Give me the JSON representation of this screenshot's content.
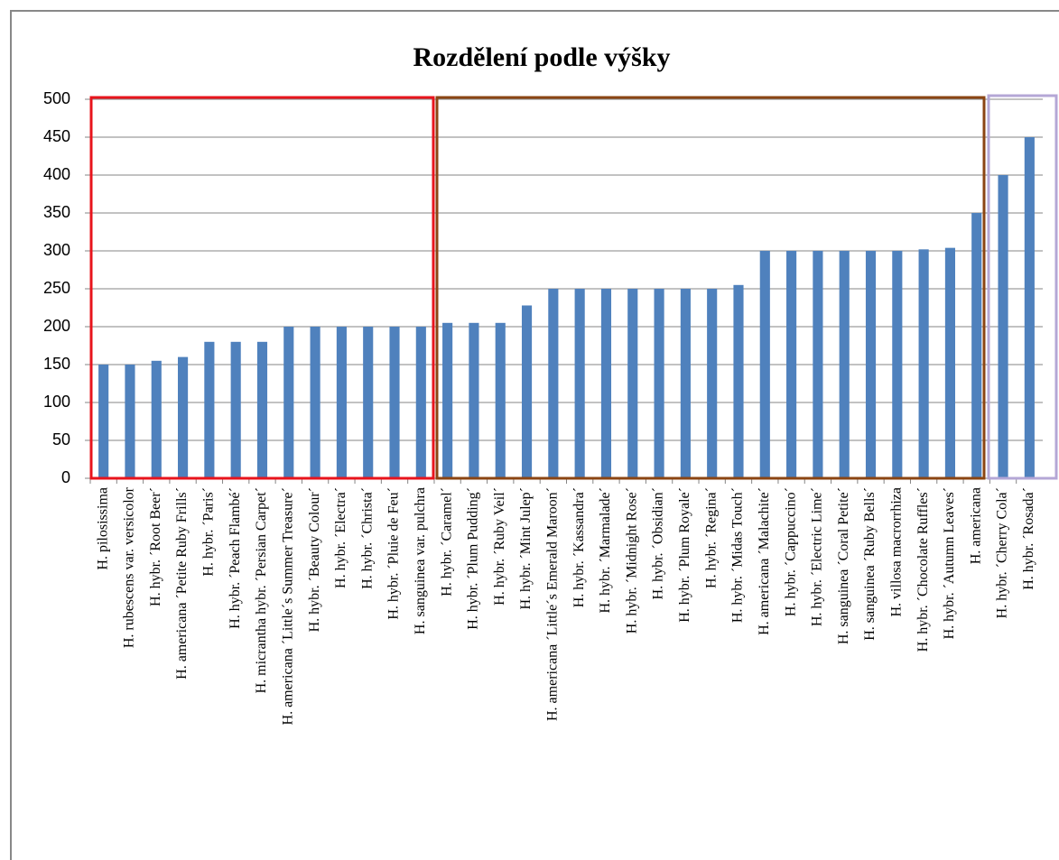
{
  "chart_data": {
    "type": "bar",
    "title": "Rozdělení podle výšky",
    "categories": [
      "H. pilosissima",
      "H. rubescens var. versicolor",
      "H. hybr. ´Root Beer´",
      "H. americana ´Petite Ruby Frills´",
      "H. hybr. ´Paris´",
      "H. hybr. ´Peach Flambé´",
      "H. micrantha hybr. ´Persian Carpet´",
      "H. americana ´Little´s Summer Treasure´",
      "H. hybr. ´Beauty Colour´",
      "H. hybr. ´Electra´",
      "H. hybr. ´Christa´",
      "H. hybr. ´Pluie de Feu´",
      "H. sanguinea var. pulchra",
      "H. hybr. ´Caramel´",
      "H. hybr. ´Plum Pudding´",
      "H. hybr. ´Ruby Veil´",
      "H. hybr. ´Mint Julep´",
      "H. americana ´Little´s Emerald Maroon´",
      "H. hybr. ´Kassandra´",
      "H. hybr. ´Marmalade´",
      "H. hybr. ´Midnight Rose´",
      "H. hybr. ´Obsidian´",
      "H. hybr. ´Plum Royale´",
      "H. hybr. ´Regina´",
      "H. hybr. ´Midas Touch´",
      "H. americana ´Malachite´",
      "H. hybr. ´Cappuccino´",
      "H. hybr. ´Electric Lime´",
      "H. sanguinea ´Coral Petite´",
      "H. sanguinea ´Ruby Bells´",
      "H. villosa macrorrhiza",
      "H. hybr. ´Chocolate Ruffles´",
      "H. hybr. ´Autumn Leaves´",
      "H. americana",
      "H. hybr. ´Cherry Cola´",
      "H. hybr. ´Rosada´"
    ],
    "values": [
      150,
      150,
      155,
      160,
      180,
      180,
      180,
      200,
      200,
      200,
      200,
      200,
      200,
      205,
      205,
      205,
      228,
      250,
      250,
      250,
      250,
      250,
      250,
      250,
      255,
      300,
      300,
      300,
      300,
      300,
      300,
      302,
      304,
      350,
      400,
      450
    ],
    "color": "#4f81bd",
    "ylim": [
      0,
      500
    ],
    "yticks": [
      0,
      50,
      100,
      150,
      200,
      250,
      300,
      350,
      400,
      450,
      500
    ],
    "grid": true
  }
}
